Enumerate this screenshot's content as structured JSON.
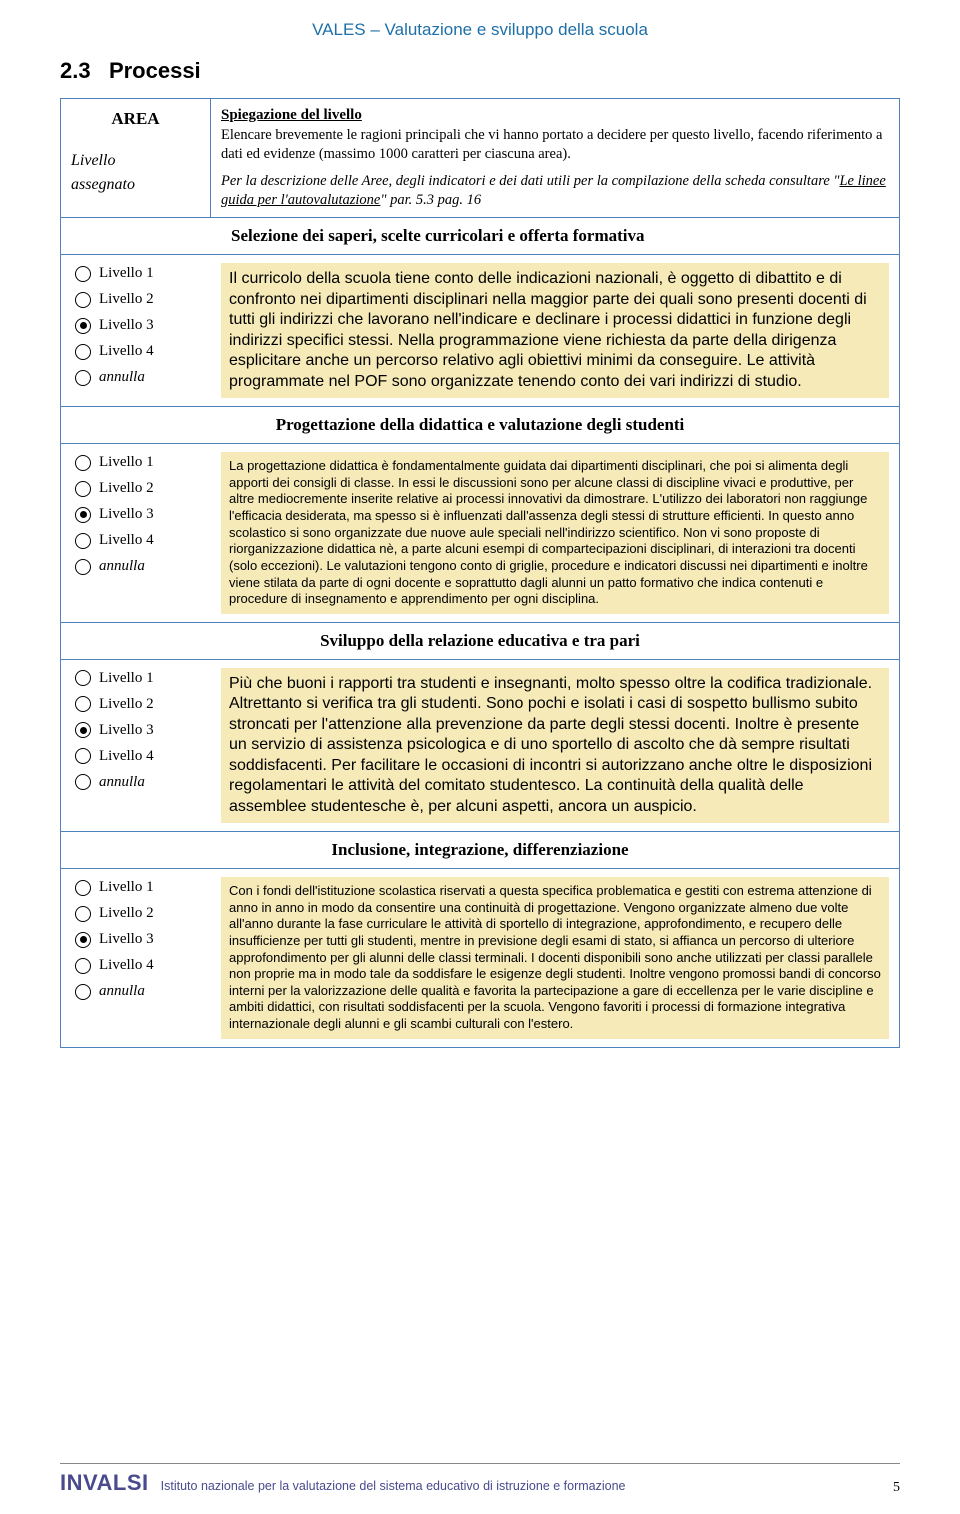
{
  "header": {
    "title": "VALES – Valutazione e sviluppo della scuola"
  },
  "section": {
    "number": "2.3",
    "title": "Processi"
  },
  "areaBox": {
    "areaLabel": "AREA",
    "livelloLabel1": "Livello",
    "livelloLabel2": "assegnato",
    "spiegazioneTitle": "Spiegazione del livello",
    "spiegazioneBody": "Elencare brevemente le ragioni principali che vi hanno portato a decidere per questo livello, facendo riferimento a dati ed evidenze (massimo 1000 caratteri per ciascuna area).",
    "spiegazioneNote1": "Per la descrizione delle Aree, degli indicatori e dei dati utili per la compilazione della scheda consultare \"",
    "spiegazioneNoteLink": "Le linee guida per l'autovalutazione",
    "spiegazioneNote2": "\" par. 5.3 pag. 16"
  },
  "radioLabels": {
    "l1": "Livello 1",
    "l2": "Livello 2",
    "l3": "Livello 3",
    "l4": "Livello 4",
    "annulla": "annulla"
  },
  "sections": [
    {
      "heading": "Selezione dei saperi, scelte curricolari e offerta formativa",
      "selected": 3,
      "textSize": "large",
      "headingAlign": "left",
      "text": "Il curricolo della scuola tiene conto delle indicazioni nazionali, è oggetto di dibattito e di confronto nei dipartimenti disciplinari nella maggior parte dei quali sono presenti docenti di tutti gli indirizzi che lavorano nell'indicare e declinare i processi didattici in funzione degli indirizzi specifici stessi. Nella programmazione viene richiesta da parte della dirigenza esplicitare anche un percorso relativo agli obiettivi minimi da conseguire. Le attività programmate nel POF sono organizzate tenendo conto dei vari indirizzi di studio."
    },
    {
      "heading": "Progettazione della didattica e valutazione degli studenti",
      "selected": 3,
      "textSize": "small",
      "headingAlign": "center",
      "text": "La progettazione didattica è fondamentalmente guidata dai dipartimenti disciplinari, che poi si alimenta degli apporti dei consigli di classe. In essi le discussioni sono per alcune classi di discipline vivaci e produttive, per altre mediocremente inserite relative ai processi innovativi da dimostrare. L'utilizzo dei laboratori non raggiunge l'efficacia desiderata, ma spesso si è influenzati dall'assenza degli stessi di strutture efficienti. In questo anno scolastico si sono organizzate due nuove aule speciali nell'indirizzo scientifico. Non vi sono proposte di riorganizzazione didattica nè, a parte alcuni esempi di compartecipazioni disciplinari, di interazioni tra docenti (solo eccezioni). Le valutazioni tengono conto di griglie, procedure e indicatori discussi nei dipartimenti e inoltre viene stilata da parte di ogni docente e soprattutto dagli alunni un patto formativo che indica contenuti e procedure di insegnamento e apprendimento per ogni disciplina."
    },
    {
      "heading": "Sviluppo della relazione educativa e tra pari",
      "selected": 3,
      "textSize": "large",
      "headingAlign": "center",
      "text": "Più che buoni i rapporti tra studenti e insegnanti, molto spesso oltre la codifica tradizionale. Altrettanto si verifica tra gli studenti. Sono pochi e isolati i casi di sospetto bullismo subito stroncati per l'attenzione alla prevenzione da parte degli stessi docenti. Inoltre è presente un servizio di assistenza psicologica e di uno sportello di ascolto che dà sempre risultati soddisfacenti. Per facilitare le occasioni di incontri si autorizzano anche oltre le disposizioni regolamentari le attività del comitato studentesco. La continuità della qualità delle assemblee studentesche è, per alcuni aspetti, ancora un auspicio."
    },
    {
      "heading": "Inclusione, integrazione, differenziazione",
      "selected": 3,
      "textSize": "small",
      "headingAlign": "center",
      "text": "Con i fondi dell'istituzione scolastica riservati a questa specifica problematica e gestiti con estrema attenzione di anno in anno in modo da consentire una continuità di progettazione. Vengono organizzate almeno due volte all'anno durante la fase curriculare le attività di sportello di integrazione, approfondimento, e recupero delle insufficienze per tutti gli studenti, mentre in previsione degli esami di stato, si affianca un percorso di ulteriore approfondimento per gli alunni delle classi terminali. I docenti disponibili sono anche utilizzati per classi parallele non proprie ma in modo tale da soddisfare le esigenze degli studenti. Inoltre vengono promossi bandi di concorso interni per la valorizzazione delle qualità e favorita la partecipazione a gare di eccellenza per le varie discipline e ambiti didattici, con risultati soddisfacenti per la scuola. Vengono favoriti i processi di formazione integrativa internazionale degli alunni e gli scambi culturali con l'estero."
    }
  ],
  "footer": {
    "logo": "INVALSI",
    "sub": "Istituto nazionale per la valutazione del sistema educativo di istruzione e formazione",
    "pageNum": "5"
  }
}
